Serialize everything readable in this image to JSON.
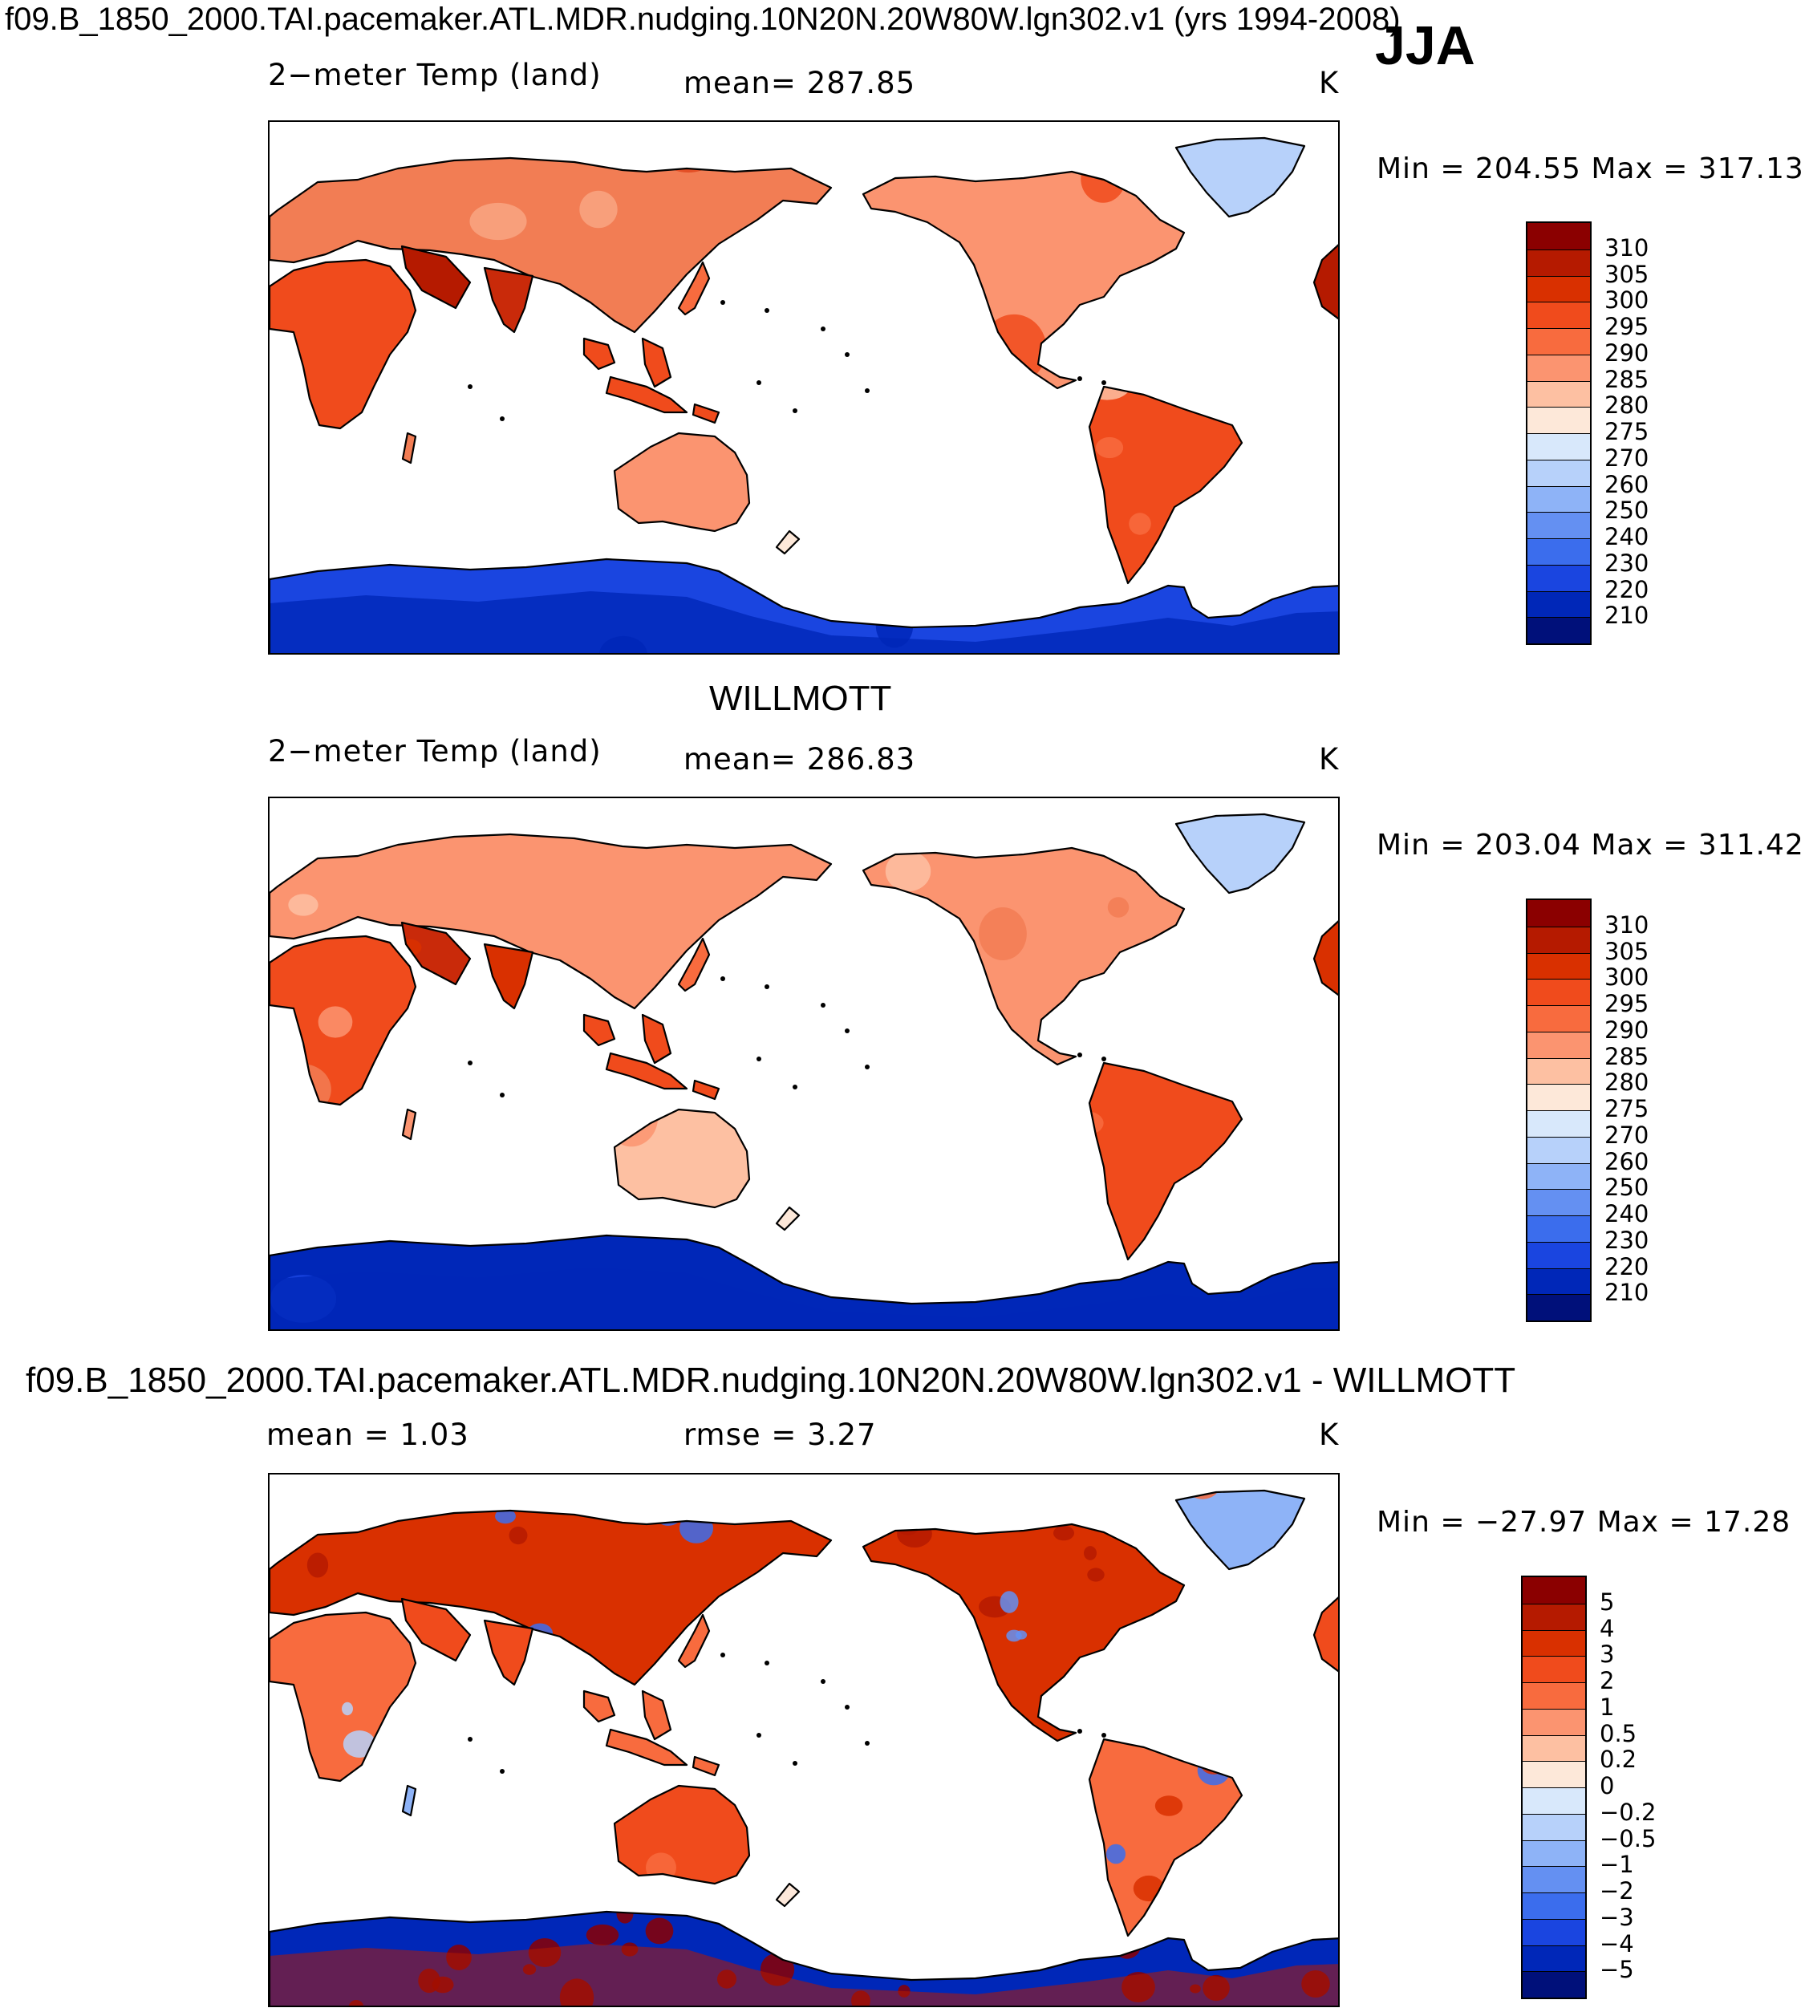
{
  "figure": {
    "case_title": "f09.B_1850_2000.TAI.pacemaker.ATL.MDR.nudging.10N20N.20W80W.lgn302.v1 (yrs 1994-2008)",
    "season": "JJA",
    "obs_title": "WILLMOTT",
    "diff_title": "f09.B_1850_2000.TAI.pacemaker.ATL.MDR.nudging.10N20N.20W80W.lgn302.v1 - WILLMOTT"
  },
  "chart_data": [
    {
      "type": "heatmap",
      "panel": "model",
      "variable": "2−meter Temp (land)",
      "mean_text": "mean=  287.85",
      "units": "K",
      "minmax_text": "Min  =  204.55  Max  =  317.13",
      "min": 204.55,
      "max": 317.13,
      "colorbar_levels": [
        "310",
        "305",
        "300",
        "295",
        "290",
        "285",
        "280",
        "275",
        "270",
        "260",
        "250",
        "240",
        "230",
        "220",
        "210"
      ],
      "colorbar_colors": [
        "#8b0000",
        "#b51a00",
        "#d93000",
        "#f04b1c",
        "#f86b3e",
        "#fb9470",
        "#fdc0a2",
        "#fde8d9",
        "#d8e8fb",
        "#b7d1fa",
        "#8eb3f7",
        "#6490f2",
        "#3b6ded",
        "#1a45e0",
        "#0027b8",
        "#00107a"
      ]
    },
    {
      "type": "heatmap",
      "panel": "observations",
      "variable": "2−meter Temp (land)",
      "mean_text": "mean=  286.83",
      "units": "K",
      "minmax_text": "Min  =  203.04  Max  =  311.42",
      "min": 203.04,
      "max": 311.42,
      "colorbar_levels": [
        "310",
        "305",
        "300",
        "295",
        "290",
        "285",
        "280",
        "275",
        "270",
        "260",
        "250",
        "240",
        "230",
        "220",
        "210"
      ],
      "colorbar_colors": [
        "#8b0000",
        "#b51a00",
        "#d93000",
        "#f04b1c",
        "#f86b3e",
        "#fb9470",
        "#fdc0a2",
        "#fde8d9",
        "#d8e8fb",
        "#b7d1fa",
        "#8eb3f7",
        "#6490f2",
        "#3b6ded",
        "#1a45e0",
        "#0027b8",
        "#00107a"
      ]
    },
    {
      "type": "heatmap",
      "panel": "difference",
      "mean_text": "mean =     1.03",
      "rmse_text": "rmse =     3.27",
      "units": "K",
      "minmax_text": "Min  =  −27.97  Max  =    17.28",
      "min": -27.97,
      "max": 17.28,
      "mean": 1.03,
      "rmse": 3.27,
      "colorbar_levels": [
        "5",
        "4",
        "3",
        "2",
        "1",
        "0.5",
        "0.2",
        "0",
        "−0.2",
        "−0.5",
        "−1",
        "−2",
        "−3",
        "−4",
        "−5"
      ],
      "colorbar_colors": [
        "#8b0000",
        "#b51a00",
        "#d93000",
        "#f04b1c",
        "#f86b3e",
        "#fb9470",
        "#fdc0a2",
        "#fde8d9",
        "#d8e8fb",
        "#b7d1fa",
        "#8eb3f7",
        "#6490f2",
        "#3b6ded",
        "#1a45e0",
        "#0027b8",
        "#00107a"
      ]
    }
  ]
}
